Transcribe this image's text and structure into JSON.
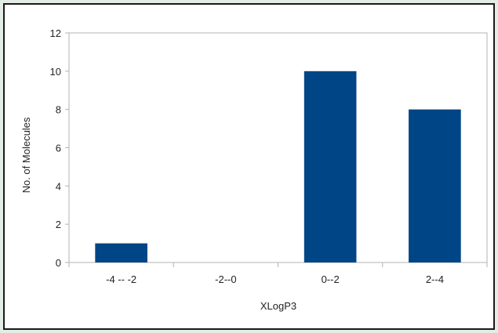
{
  "chart_data": {
    "type": "bar",
    "categories": [
      "-4 -- -2",
      "-2--0",
      "0--2",
      "2--4"
    ],
    "values": [
      1,
      0,
      10,
      8
    ],
    "xlabel": "XLogP3",
    "ylabel": "No. of Molecules",
    "ylim": [
      0,
      12
    ],
    "yticks": [
      0,
      2,
      4,
      6,
      8,
      10,
      12
    ],
    "grid": false,
    "legend": "none",
    "bar_color": "#004586"
  }
}
